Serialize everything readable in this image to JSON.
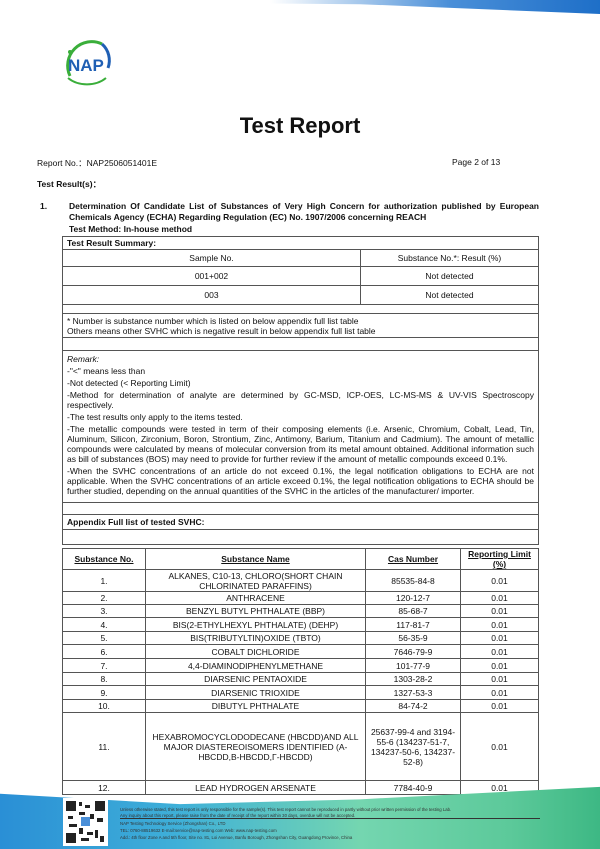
{
  "logo": {
    "text": "NAP",
    "colors": {
      "blue": "#1f5fb4",
      "green": "#3aae3a"
    }
  },
  "title": "Test Report",
  "report_no_label": "Report No.：",
  "report_no": "NAP2506051401E",
  "page": "Page 2 of 13",
  "results_label": "Test Result(s)：",
  "section": {
    "num": "1.",
    "title": "Determination Of Candidate List of Substances of Very High Concern for authorization published by European Chemicals Agency (ECHA) Regarding Regulation (EC) No. 1907/2006 concerning REACH",
    "method": "Test Method: In-house method"
  },
  "summary": {
    "title": "Test Result Summary:",
    "headers": [
      "Sample No.",
      "Substance No.*: Result (%)"
    ],
    "rows": [
      [
        "001+002",
        "Not detected"
      ],
      [
        "003",
        "Not detected"
      ]
    ],
    "notes": [
      "* Number is substance number which is listed on below appendix full list table",
      "Others means other SVHC which is negative result in below appendix full list table"
    ]
  },
  "remark": {
    "title": "Remark:",
    "items": [
      "-\"<\" means less than",
      "-Not detected (< Reporting Limit)",
      "-Method for determination of analyte are determined by GC-MSD, ICP-OES, LC-MS-MS & UV-VIS Spectroscopy respectively.",
      "-The test results only apply to the items tested.",
      "-The metallic compounds were tested in term of their composing elements (i.e. Arsenic, Chromium, Cobalt, Lead, Tin, Aluminum, Silicon, Zirconium, Boron, Strontium, Zinc, Antimony, Barium, Titanium and Cadmium). The amount of metallic compounds were calculated by means of molecular conversion from its metal amount obtained. Additional information such as bill of substances (BOS) may need to provide for further review if the amount of metallic compounds exceed 0.1%.",
      "-When the SVHC concentrations of an article do not exceed 0.1%, the legal notification obligations to ECHA are not applicable.   When the SVHC concentrations of an article exceed 0.1%, the legal notification obligations to ECHA should be further studied, depending on the annual quantities of the SVHC in the articles of the manufacturer/ importer."
    ]
  },
  "appendix": {
    "title": "Appendix Full list of tested SVHC:",
    "headers": [
      "Substance No.",
      "Substance Name",
      "Cas Number",
      "Reporting Limit (%)"
    ],
    "rows": [
      [
        "1.",
        "ALKANES, C10-13, CHLORO(SHORT CHAIN CHLORINATED PARAFFINS)",
        "85535-84-8",
        "0.01"
      ],
      [
        "2.",
        "ANTHRACENE",
        "120-12-7",
        "0.01"
      ],
      [
        "3.",
        "BENZYL BUTYL PHTHALATE (BBP)",
        "85-68-7",
        "0.01"
      ],
      [
        "4.",
        "BIS(2-ETHYLHEXYL PHTHALATE) (DEHP)",
        "117-81-7",
        "0.01"
      ],
      [
        "5.",
        "BIS(TRIBUTYLTIN)OXIDE (TBTO)",
        "56-35-9",
        "0.01"
      ],
      [
        "6.",
        "COBALT DICHLORIDE",
        "7646-79-9",
        "0.01"
      ],
      [
        "7.",
        "4,4-DIAMINODIPHENYLMETHANE",
        "101-77-9",
        "0.01"
      ],
      [
        "8.",
        "DIARSENIC PENTAOXIDE",
        "1303-28-2",
        "0.01"
      ],
      [
        "9.",
        "DIARSENIC TRIOXIDE",
        "1327-53-3",
        "0.01"
      ],
      [
        "10.",
        "DIBUTYL PHTHALATE",
        "84-74-2",
        "0.01"
      ],
      [
        "11.",
        "HEXABROMOCYCLODODECANE (HBCDD)AND ALL MAJOR DIASTEREOISOMERS IDENTIFIED (A-HBCDD,Β-HBCDD,Γ-HBCDD)",
        "25637-99-4 and 3194-55-6 (134237-51-7, 134237-50-6, 134237-52-8)",
        "0.01"
      ],
      [
        "12.",
        "LEAD HYDROGEN ARSENATE",
        "7784-40-9",
        "0.01"
      ]
    ]
  },
  "footer": {
    "disclaimer1": "Unless otherwise stated, this test report is only responsible for the sample(s). This test report cannot be reproduced in partly without prior written permission of the testing Lab.",
    "disclaimer2": "Any inquiry about this report, please raise from the date of receipt of the report within 30 days, overdue will not be accepted.",
    "company": "NAP Testing Technology Service (Zhongshan) Co., LTD",
    "contact": "TEL: 0760-88519632    E-mail:service@nap-testing.com    Web: www.nap-testing.com",
    "address": "Add.: 4th floor Zone A and 5th floor, Site no. 81, Loi Avenue, Banfu Borough, Zhongshan City, Guangdong Province, China"
  }
}
